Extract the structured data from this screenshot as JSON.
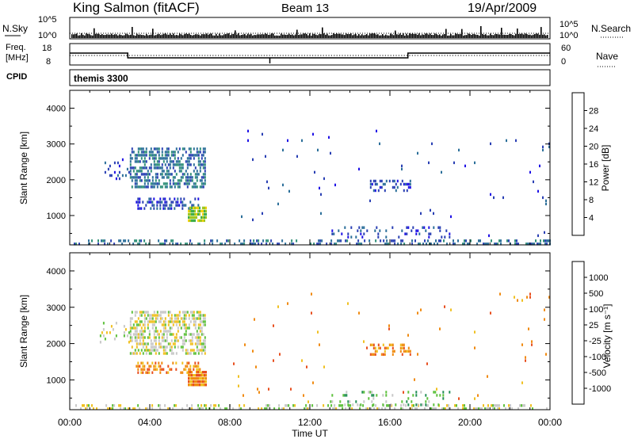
{
  "header": {
    "station": "King Salmon (fitACF)",
    "beam": "Beam 13",
    "date": "19/Apr/2009"
  },
  "aux": {
    "nsky_label": "N.Sky",
    "nsearch_label": "N.Search",
    "freq_label": [
      "Freq.",
      "[MHz]"
    ],
    "nave_label": "Nave",
    "cpid_label": "CPID",
    "cpid_value": "themis 3300",
    "noise_ticks": [
      "10^5",
      "10^0"
    ],
    "freq_ticks": [
      "18",
      "8"
    ],
    "nave_ticks": [
      "60",
      "0"
    ]
  },
  "chart_data": [
    {
      "type": "heatmap",
      "name": "power",
      "ylabel": "Slant Range [km]",
      "xlabel": "",
      "x_ticks": [
        "00:00",
        "04:00",
        "08:00",
        "12:00",
        "16:00",
        "20:00",
        "00:00"
      ],
      "y_ticks": [
        1000,
        2000,
        3000,
        4000
      ],
      "xlim_hours": [
        0,
        24
      ],
      "ylim_km": [
        180,
        4500
      ],
      "colorbar": {
        "label": "Power [dB]",
        "ticks": [
          "4",
          "8",
          "12",
          "16",
          "20",
          "24",
          "28"
        ],
        "colors": [
          "#1f12e6",
          "#2a40b4",
          "#2c6f9a",
          "#2f8f78",
          "#3fae4a",
          "#9ec71f",
          "#f0d010",
          "#f8a020",
          "#f07020",
          "#e84020",
          "#e00d10"
        ]
      },
      "regions": [
        {
          "t": [
            3.0,
            6.8
          ],
          "r": [
            1750,
            2900
          ],
          "density": 0.55,
          "level": 2
        },
        {
          "t": [
            1.5,
            3.0
          ],
          "r": [
            2000,
            2600
          ],
          "density": 0.12,
          "level": 1
        },
        {
          "t": [
            3.3,
            6.6
          ],
          "r": [
            1200,
            1500
          ],
          "density": 0.45,
          "level": 1
        },
        {
          "t": [
            5.9,
            6.8
          ],
          "r": [
            850,
            1250
          ],
          "density": 0.9,
          "level": 5
        },
        {
          "t": [
            0.2,
            24.0
          ],
          "r": [
            190,
            330
          ],
          "density": 0.35,
          "level": 2
        },
        {
          "t": [
            15.0,
            17.0
          ],
          "r": [
            1700,
            2000
          ],
          "density": 0.45,
          "level": 1
        },
        {
          "t": [
            13.0,
            19.0
          ],
          "r": [
            350,
            700
          ],
          "density": 0.18,
          "level": 1
        },
        {
          "t": [
            8.0,
            24.0
          ],
          "r": [
            400,
            3400
          ],
          "density": 0.008,
          "level": 1
        }
      ]
    },
    {
      "type": "heatmap",
      "name": "velocity",
      "ylabel": "Slant Range [km]",
      "xlabel": "Time UT",
      "x_ticks": [
        "00:00",
        "04:00",
        "08:00",
        "12:00",
        "16:00",
        "20:00",
        "00:00"
      ],
      "y_ticks": [
        1000,
        2000,
        3000,
        4000
      ],
      "xlim_hours": [
        0,
        24
      ],
      "ylim_km": [
        180,
        4500
      ],
      "colorbar": {
        "label": "Velocity [m s⁻¹]",
        "ticks": [
          "1000",
          "500",
          "100",
          "25",
          "-25",
          "-100",
          "-500",
          "-1000"
        ],
        "colors": [
          "#1a22c0",
          "#1d5aa8",
          "#238f55",
          "#5ec13d",
          "#c8c8c8",
          "#f0c020",
          "#f08a10",
          "#e85020",
          "#e01010"
        ]
      },
      "regions": [
        {
          "t": [
            3.0,
            6.8
          ],
          "r": [
            1750,
            2900
          ],
          "density": 0.55,
          "level": 4
        },
        {
          "t": [
            1.5,
            3.0
          ],
          "r": [
            2000,
            2600
          ],
          "density": 0.12,
          "level": 4
        },
        {
          "t": [
            3.3,
            6.6
          ],
          "r": [
            1200,
            1500
          ],
          "density": 0.45,
          "level": 6
        },
        {
          "t": [
            5.9,
            6.8
          ],
          "r": [
            850,
            1250
          ],
          "density": 0.9,
          "level": 6
        },
        {
          "t": [
            0.2,
            24.0
          ],
          "r": [
            190,
            330
          ],
          "density": 0.35,
          "level": 4
        },
        {
          "t": [
            13.0,
            19.0
          ],
          "r": [
            350,
            700
          ],
          "density": 0.18,
          "level": 3
        },
        {
          "t": [
            15.0,
            17.0
          ],
          "r": [
            1700,
            2000
          ],
          "density": 0.45,
          "level": 6
        },
        {
          "t": [
            8.0,
            24.0
          ],
          "r": [
            400,
            3400
          ],
          "density": 0.008,
          "level": 6
        }
      ]
    }
  ]
}
